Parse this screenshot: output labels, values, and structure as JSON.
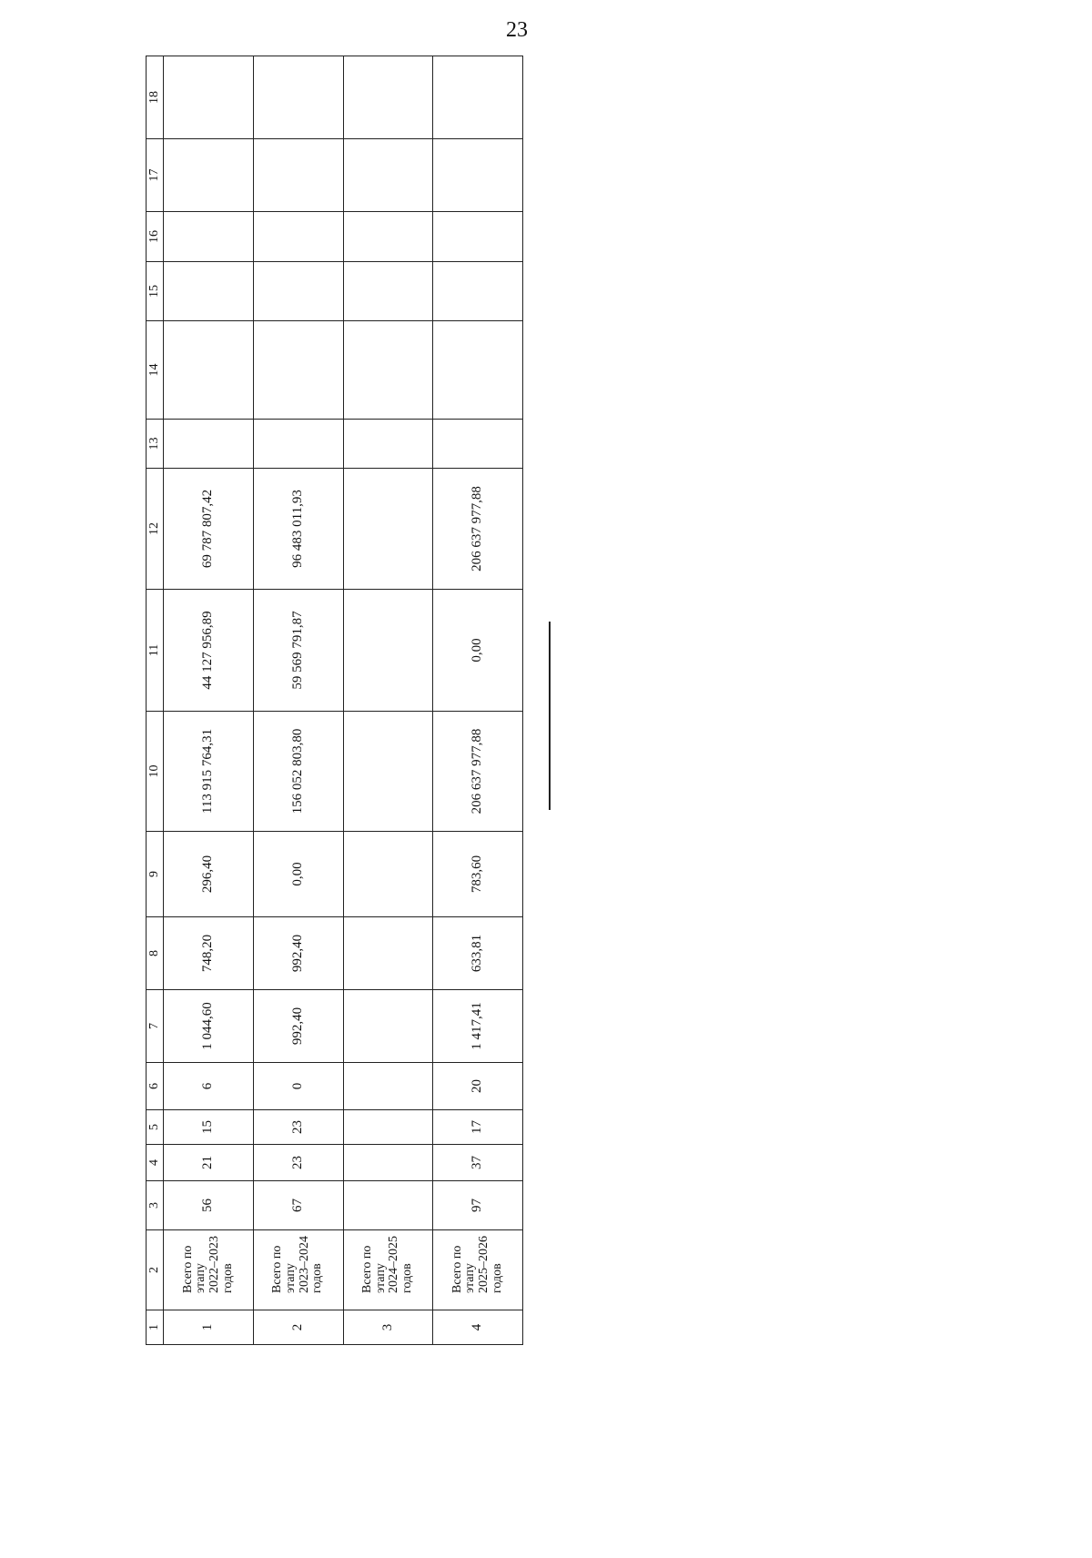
{
  "page_number": "23",
  "table": {
    "column_numbers": [
      "1",
      "2",
      "3",
      "4",
      "5",
      "6",
      "7",
      "8",
      "9",
      "10",
      "11",
      "12",
      "13",
      "14",
      "15",
      "16",
      "17",
      "18"
    ],
    "rows": [
      [
        "1",
        "Всего по этапу 2022–2023 годов",
        "56",
        "21",
        "15",
        "6",
        "1 044,60",
        "748,20",
        "296,40",
        "113 915 764,31",
        "44 127 956,89",
        "69 787 807,42",
        "",
        "",
        "",
        "",
        "",
        ""
      ],
      [
        "2",
        "Всего по этапу 2023–2024 годов",
        "67",
        "23",
        "23",
        "0",
        "992,40",
        "992,40",
        "0,00",
        "156 052 803,80",
        "59 569 791,87",
        "96 483 011,93",
        "",
        "",
        "",
        "",
        "",
        ""
      ],
      [
        "3",
        "Всего по этапу 2024–2025 годов",
        "",
        "",
        "",
        "",
        "",
        "",
        "",
        "",
        "",
        "",
        "",
        "",
        "",
        "",
        "",
        ""
      ],
      [
        "4",
        "Всего по этапу 2025–2026 годов",
        "97",
        "37",
        "17",
        "20",
        "1 417,41",
        "633,81",
        "783,60",
        "206 637 977,88",
        "0,00",
        "206 637 977,88",
        "",
        "",
        "",
        "",
        "",
        ""
      ]
    ]
  }
}
